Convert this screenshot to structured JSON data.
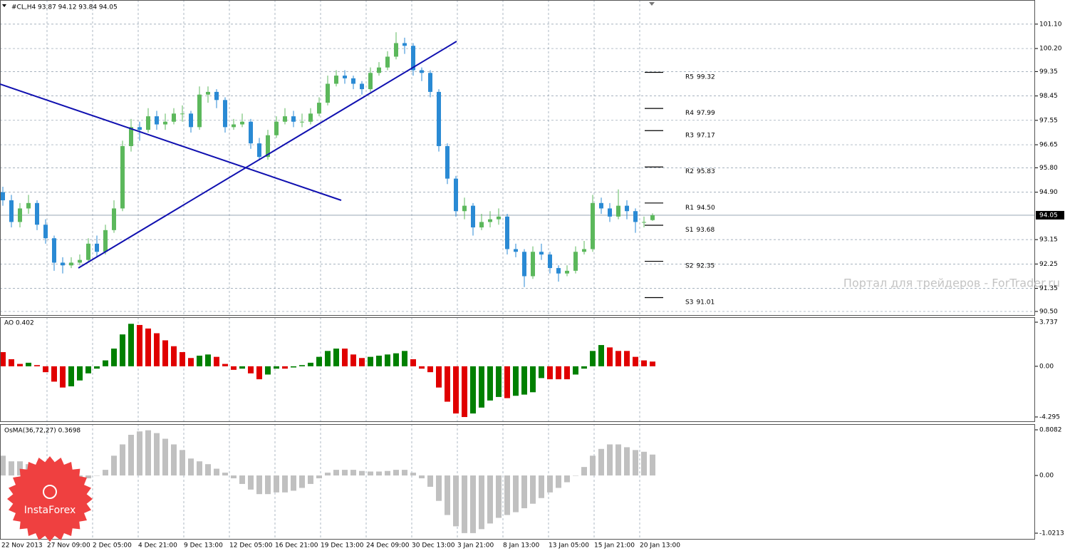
{
  "header": "#CL,H4  93.87 94.12 93.84 94.05",
  "watermark": "Портал для трейдеров - ForTrader.ru",
  "logo": "InstaForex",
  "chart_data": [
    {
      "type": "candlestick",
      "up_color": "#5cb85c",
      "down_color": "#2a8ad4",
      "open": [
        94.9,
        94.6,
        93.8,
        94.3,
        94.5,
        93.7,
        93.2,
        92.3,
        92.2,
        92.3,
        92.4,
        93.0,
        92.7,
        93.5,
        94.3,
        96.6,
        97.3,
        97.2,
        97.7,
        97.4,
        97.5,
        97.8,
        97.8,
        97.3,
        98.5,
        98.6,
        98.3,
        97.3,
        97.4,
        97.5,
        96.7,
        96.2,
        97.0,
        97.5,
        97.7,
        97.5,
        97.5,
        97.8,
        98.2,
        98.9,
        99.2,
        99.1,
        98.9,
        98.7,
        99.3,
        99.5,
        99.9,
        100.4,
        100.3,
        99.4,
        99.3,
        98.6,
        96.6,
        95.4,
        94.2,
        94.4,
        93.6,
        93.8,
        93.9,
        94.0,
        92.8,
        92.7,
        91.8,
        92.7,
        92.6,
        92.1,
        91.9,
        92.0,
        92.7,
        92.8,
        94.5,
        94.3,
        94.0,
        94.4,
        94.2,
        93.8,
        93.87
      ],
      "high": [
        95.1,
        94.8,
        94.5,
        94.8,
        94.6,
        93.9,
        93.3,
        92.5,
        92.5,
        92.6,
        93.2,
        93.3,
        93.7,
        94.6,
        96.8,
        97.6,
        97.5,
        98.0,
        97.9,
        97.8,
        98.0,
        98.1,
        97.9,
        98.8,
        98.8,
        98.7,
        98.4,
        97.6,
        97.8,
        97.6,
        96.9,
        97.2,
        97.7,
        98.0,
        97.9,
        97.8,
        98.0,
        98.4,
        99.2,
        99.4,
        99.4,
        99.2,
        99.0,
        99.5,
        99.7,
        100.1,
        100.8,
        100.6,
        100.4,
        99.5,
        99.4,
        98.7,
        96.7,
        95.5,
        94.7,
        94.5,
        94.1,
        94.2,
        94.3,
        94.1,
        93.0,
        92.8,
        92.9,
        93.0,
        92.7,
        92.2,
        92.2,
        92.9,
        93.1,
        94.8,
        94.7,
        94.5,
        95.0,
        94.6,
        94.3,
        94.0,
        94.12
      ],
      "low": [
        94.4,
        93.6,
        93.6,
        94.1,
        93.5,
        93.0,
        92.0,
        91.9,
        92.1,
        92.2,
        92.3,
        92.5,
        92.6,
        93.4,
        94.2,
        96.4,
        96.8,
        97.1,
        97.2,
        97.2,
        97.4,
        97.5,
        97.1,
        97.2,
        98.2,
        98.0,
        97.1,
        97.2,
        97.3,
        96.5,
        96.1,
        96.1,
        96.9,
        97.4,
        97.3,
        97.3,
        97.4,
        97.7,
        98.1,
        98.8,
        98.9,
        98.7,
        98.5,
        98.6,
        99.2,
        99.4,
        99.8,
        100.0,
        99.2,
        99.0,
        98.4,
        96.4,
        95.2,
        94.0,
        93.9,
        93.3,
        93.5,
        93.6,
        93.7,
        92.6,
        92.5,
        91.4,
        91.7,
        92.4,
        91.9,
        91.6,
        91.8,
        91.9,
        92.6,
        92.7,
        94.1,
        93.8,
        93.9,
        93.9,
        93.4,
        93.6,
        93.84
      ],
      "close": [
        94.6,
        93.8,
        94.3,
        94.5,
        93.7,
        93.2,
        92.3,
        92.2,
        92.3,
        92.4,
        93.0,
        92.7,
        93.5,
        94.3,
        96.6,
        97.3,
        97.2,
        97.7,
        97.4,
        97.5,
        97.8,
        97.8,
        97.3,
        98.5,
        98.6,
        98.3,
        97.3,
        97.4,
        97.5,
        96.7,
        96.2,
        97.0,
        97.5,
        97.7,
        97.5,
        97.5,
        97.8,
        98.2,
        98.9,
        99.2,
        99.1,
        98.9,
        98.7,
        99.3,
        99.5,
        99.9,
        100.4,
        100.3,
        99.4,
        99.3,
        98.6,
        96.6,
        95.4,
        94.2,
        94.4,
        93.6,
        93.8,
        93.9,
        94.0,
        92.8,
        92.7,
        91.8,
        92.7,
        92.6,
        92.1,
        91.9,
        92.0,
        92.7,
        92.8,
        94.5,
        94.3,
        94.0,
        94.4,
        94.2,
        93.8,
        93.8,
        94.05
      ],
      "ylim": [
        90.34,
        101.99
      ],
      "yticks": [
        {
          "value": 101.1,
          "label": "101.10"
        },
        {
          "value": 100.2,
          "label": "100.20"
        },
        99.35,
        98.45,
        97.55,
        96.65,
        {
          "value": 95.8,
          "label": "95.80"
        },
        {
          "value": 94.9,
          "label": "94.90"
        },
        93.15,
        92.25,
        91.35,
        {
          "value": 90.5,
          "label": "90.50"
        }
      ],
      "grid": true,
      "pivots": [
        {
          "name": "R5",
          "value": 99.32
        },
        {
          "name": "R4",
          "value": 97.99
        },
        {
          "name": "R3",
          "value": 97.17
        },
        {
          "name": "R2",
          "value": 95.83
        },
        {
          "name": "R1",
          "value": 94.5,
          "label": "94.50"
        },
        {
          "name": "S1",
          "value": 93.68
        },
        {
          "name": "S2",
          "value": 92.35
        },
        {
          "name": "S3",
          "value": 91.01
        }
      ]
    },
    {
      "type": "bar",
      "title": "AO 0.402",
      "up_color": "#008000",
      "down_color": "#e00000",
      "values": [
        1.2,
        0.6,
        0.2,
        0.3,
        0.1,
        -0.5,
        -1.3,
        -1.8,
        -1.7,
        -1.2,
        -0.6,
        -0.2,
        0.5,
        1.5,
        2.7,
        3.6,
        3.5,
        3.2,
        2.8,
        2.2,
        1.7,
        1.2,
        0.7,
        0.9,
        1.0,
        0.8,
        0.2,
        -0.3,
        -0.2,
        -0.6,
        -1.1,
        -0.7,
        -0.2,
        -0.2,
        -0.1,
        0.1,
        0.3,
        0.8,
        1.3,
        1.5,
        1.5,
        1.0,
        0.7,
        0.8,
        0.9,
        1.0,
        1.1,
        1.3,
        0.6,
        -0.2,
        -0.5,
        -1.8,
        -3.0,
        -4.0,
        -4.3,
        -4.0,
        -3.5,
        -2.9,
        -2.6,
        -2.7,
        -2.5,
        -2.4,
        -2.2,
        -1.0,
        -1.1,
        -1.1,
        -1.1,
        -0.7,
        -0.2,
        1.3,
        1.8,
        1.6,
        1.3,
        1.3,
        0.8,
        0.5,
        0.4
      ],
      "ylim": [
        -4.72,
        4.16
      ],
      "yticks": [
        3.737,
        {
          "value": 0,
          "label": "0.00"
        },
        -4.295
      ]
    },
    {
      "type": "bar",
      "title": "OsMA(36,72,27) 0.3698",
      "color": "#c0c0c0",
      "values": [
        0.35,
        0.25,
        0.25,
        0.2,
        0.15,
        0.05,
        -0.05,
        -0.07,
        -0.05,
        -0.05,
        -0.05,
        0.0,
        0.1,
        0.35,
        0.55,
        0.72,
        0.78,
        0.8,
        0.75,
        0.65,
        0.55,
        0.45,
        0.3,
        0.25,
        0.2,
        0.12,
        0.05,
        -0.05,
        -0.15,
        -0.25,
        -0.33,
        -0.33,
        -0.3,
        -0.3,
        -0.27,
        -0.22,
        -0.15,
        -0.05,
        0.05,
        0.1,
        0.1,
        0.1,
        0.08,
        0.07,
        0.07,
        0.08,
        0.1,
        0.1,
        0.05,
        -0.05,
        -0.2,
        -0.45,
        -0.7,
        -0.9,
        -1.02,
        -1.02,
        -0.95,
        -0.85,
        -0.75,
        -0.7,
        -0.65,
        -0.58,
        -0.5,
        -0.4,
        -0.3,
        -0.22,
        -0.12,
        0.0,
        0.15,
        0.35,
        0.47,
        0.55,
        0.55,
        0.5,
        0.45,
        0.42,
        0.37
      ],
      "ylim": [
        -1.135,
        0.909
      ],
      "yticks": [
        0.8082,
        {
          "value": 0,
          "label": "0.00"
        },
        -1.0213
      ],
      "xlabels": [
        "22 Nov 2013",
        "27 Nov 09:00",
        "2 Dec 05:00",
        "4 Dec 21:00",
        "9 Dec 13:00",
        "12 Dec 05:00",
        "16 Dec 21:00",
        "19 Dec 13:00",
        "24 Dec 09:00",
        "30 Dec 13:00",
        "3 Jan 21:00",
        "8 Jan 13:00",
        "13 Jan 05:00",
        "15 Jan 21:00",
        "20 Jan 13:00"
      ]
    }
  ]
}
